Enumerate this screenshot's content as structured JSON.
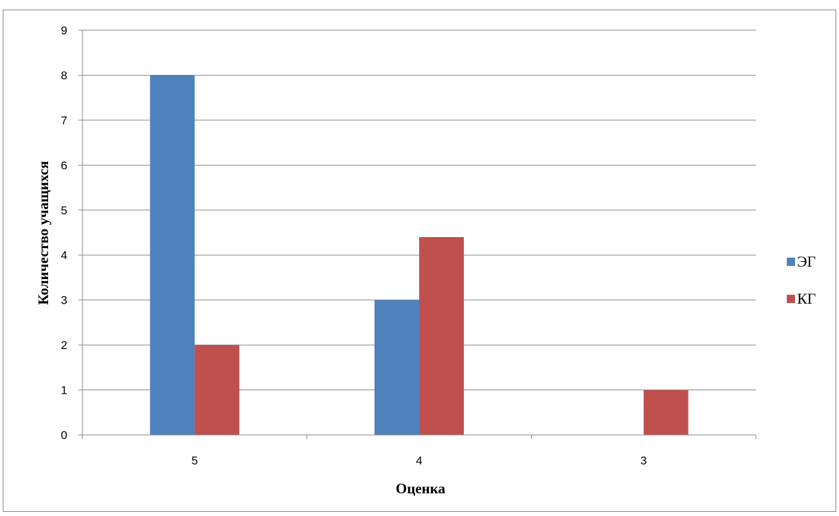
{
  "chart_data": {
    "type": "bar",
    "categories": [
      "5",
      "4",
      "3"
    ],
    "series": [
      {
        "name": "ЭГ",
        "values": [
          8,
          3,
          0
        ],
        "color": "#4F81BD"
      },
      {
        "name": "КГ",
        "values": [
          2,
          4.4,
          1
        ],
        "color": "#C0504D"
      }
    ],
    "xlabel": "Оценка",
    "ylabel": "Количество учащихся",
    "ylim": [
      0,
      9
    ],
    "yticks": [
      "0",
      "1",
      "2",
      "3",
      "4",
      "5",
      "6",
      "7",
      "8",
      "9"
    ],
    "grid": true,
    "legend_position": "right",
    "gridline_color": "#868686"
  }
}
